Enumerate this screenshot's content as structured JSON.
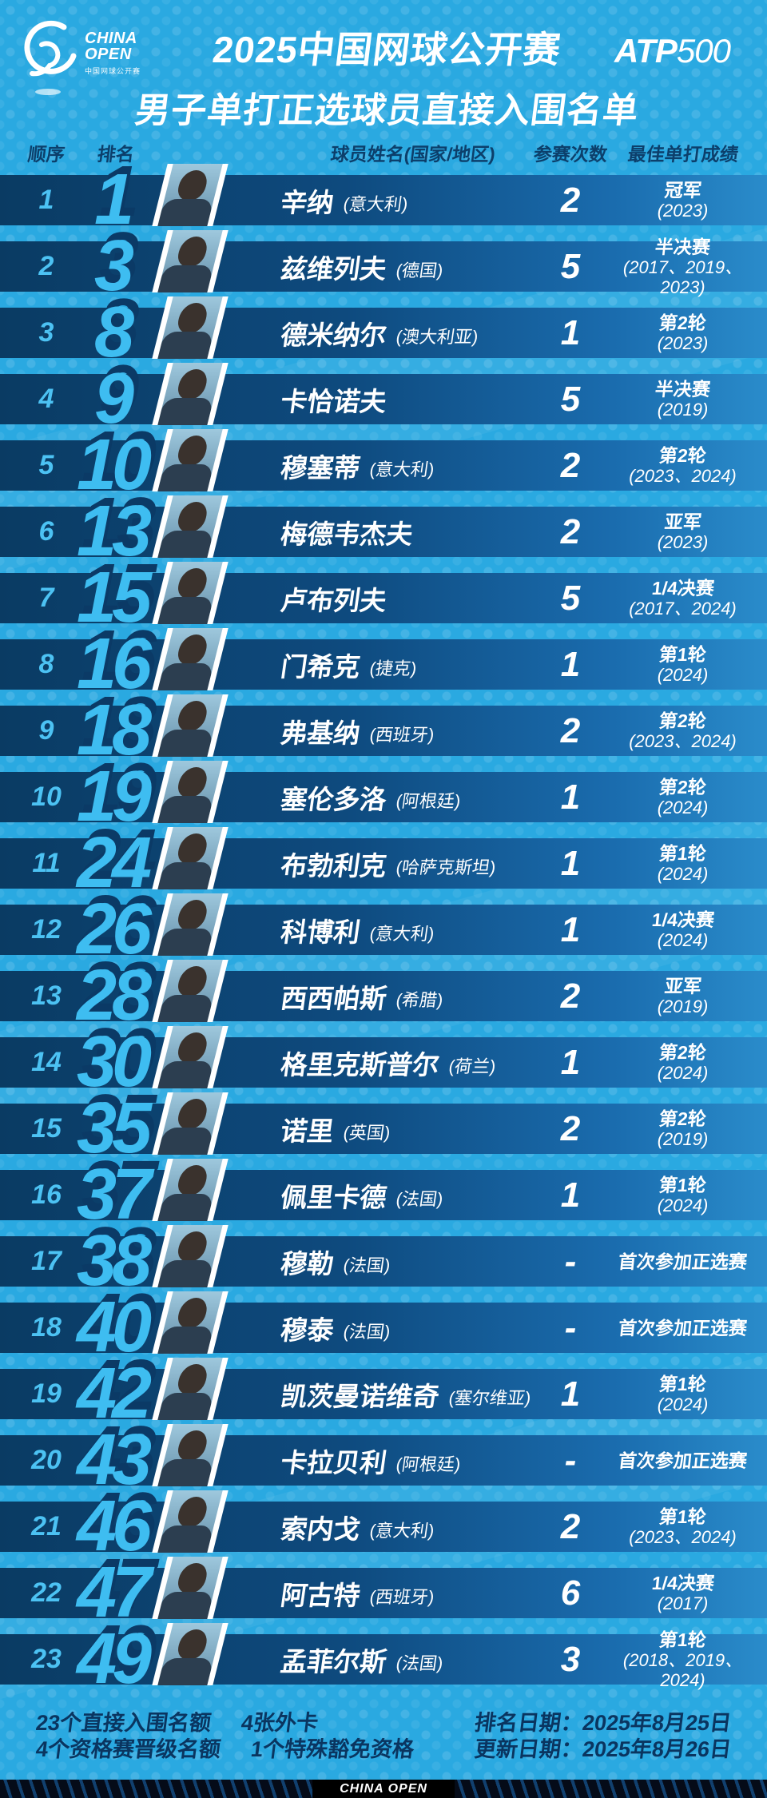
{
  "header": {
    "logo": {
      "line1": "CHINA",
      "line2": "OPEN",
      "subtitle": "中国网球公开赛"
    },
    "title_line1": "2025中国网球公开赛",
    "title_line2": "男子单打正选球员直接入围名单",
    "atp_badge": {
      "atp": "ATP",
      "level": "500"
    }
  },
  "columns": {
    "order": "顺序",
    "rank": "排名",
    "player": "球员姓名(国家/地区)",
    "appearances": "参赛次数",
    "best": "最佳单打成绩"
  },
  "rows": [
    {
      "order": "1",
      "rank": "1",
      "name": "辛纳",
      "country": "(意大利)",
      "appearances": "2",
      "best": "冠军",
      "years": "(2023)"
    },
    {
      "order": "2",
      "rank": "3",
      "name": "兹维列夫",
      "country": "(德国)",
      "appearances": "5",
      "best": "半决赛",
      "years": "(2017、2019、2023)"
    },
    {
      "order": "3",
      "rank": "8",
      "name": "德米纳尔",
      "country": "(澳大利亚)",
      "appearances": "1",
      "best": "第2轮",
      "years": "(2023)"
    },
    {
      "order": "4",
      "rank": "9",
      "name": "卡恰诺夫",
      "country": "",
      "appearances": "5",
      "best": "半决赛",
      "years": "(2019)"
    },
    {
      "order": "5",
      "rank": "10",
      "name": "穆塞蒂",
      "country": "(意大利)",
      "appearances": "2",
      "best": "第2轮",
      "years": "(2023、2024)"
    },
    {
      "order": "6",
      "rank": "13",
      "name": "梅德韦杰夫",
      "country": "",
      "appearances": "2",
      "best": "亚军",
      "years": "(2023)"
    },
    {
      "order": "7",
      "rank": "15",
      "name": "卢布列夫",
      "country": "",
      "appearances": "5",
      "best": "1/4决赛",
      "years": "(2017、2024)"
    },
    {
      "order": "8",
      "rank": "16",
      "name": "门希克",
      "country": "(捷克)",
      "appearances": "1",
      "best": "第1轮",
      "years": "(2024)"
    },
    {
      "order": "9",
      "rank": "18",
      "name": "弗基纳",
      "country": "(西班牙)",
      "appearances": "2",
      "best": "第2轮",
      "years": "(2023、2024)"
    },
    {
      "order": "10",
      "rank": "19",
      "name": "塞伦多洛",
      "country": "(阿根廷)",
      "appearances": "1",
      "best": "第2轮",
      "years": "(2024)"
    },
    {
      "order": "11",
      "rank": "24",
      "name": "布勃利克",
      "country": "(哈萨克斯坦)",
      "appearances": "1",
      "best": "第1轮",
      "years": "(2024)"
    },
    {
      "order": "12",
      "rank": "26",
      "name": "科博利",
      "country": "(意大利)",
      "appearances": "1",
      "best": "1/4决赛",
      "years": "(2024)"
    },
    {
      "order": "13",
      "rank": "28",
      "name": "西西帕斯",
      "country": "(希腊)",
      "appearances": "2",
      "best": "亚军",
      "years": "(2019)"
    },
    {
      "order": "14",
      "rank": "30",
      "name": "格里克斯普尔",
      "country": "(荷兰)",
      "appearances": "1",
      "best": "第2轮",
      "years": "(2024)"
    },
    {
      "order": "15",
      "rank": "35",
      "name": "诺里",
      "country": "(英国)",
      "appearances": "2",
      "best": "第2轮",
      "years": "(2019)"
    },
    {
      "order": "16",
      "rank": "37",
      "name": "佩里卡德",
      "country": "(法国)",
      "appearances": "1",
      "best": "第1轮",
      "years": "(2024)"
    },
    {
      "order": "17",
      "rank": "38",
      "name": "穆勒",
      "country": "(法国)",
      "appearances": "-",
      "best": "首次参加正选赛",
      "years": ""
    },
    {
      "order": "18",
      "rank": "40",
      "name": "穆泰",
      "country": "(法国)",
      "appearances": "-",
      "best": "首次参加正选赛",
      "years": ""
    },
    {
      "order": "19",
      "rank": "42",
      "name": "凯茨曼诺维奇",
      "country": "(塞尔维亚)",
      "appearances": "1",
      "best": "第1轮",
      "years": "(2024)"
    },
    {
      "order": "20",
      "rank": "43",
      "name": "卡拉贝利",
      "country": "(阿根廷)",
      "appearances": "-",
      "best": "首次参加正选赛",
      "years": ""
    },
    {
      "order": "21",
      "rank": "46",
      "name": "索内戈",
      "country": "(意大利)",
      "appearances": "2",
      "best": "第1轮",
      "years": "(2023、2024)"
    },
    {
      "order": "22",
      "rank": "47",
      "name": "阿古特",
      "country": "(西班牙)",
      "appearances": "6",
      "best": "1/4决赛",
      "years": "(2017)"
    },
    {
      "order": "23",
      "rank": "49",
      "name": "孟菲尔斯",
      "country": "(法国)",
      "appearances": "3",
      "best": "第1轮",
      "years": "(2018、2019、2024)"
    }
  ],
  "footer": {
    "left_line1_a": "23个直接入围名额",
    "left_line1_b": "4张外卡",
    "left_line2_a": "4个资格赛晋级名额",
    "left_line2_b": "1个特殊豁免资格",
    "right_line1": "排名日期：2025年8月25日",
    "right_line2": "更新日期：2025年8月26日"
  },
  "bottom_bar": {
    "label": "CHINA OPEN"
  },
  "colors": {
    "bg": "#2aa9e1",
    "band-dark": "#0c3d66",
    "band-light": "#2a8ccb",
    "num-light": "#3ebdf1",
    "num-dark": "#0b3a66",
    "ink": "#0a3560"
  }
}
